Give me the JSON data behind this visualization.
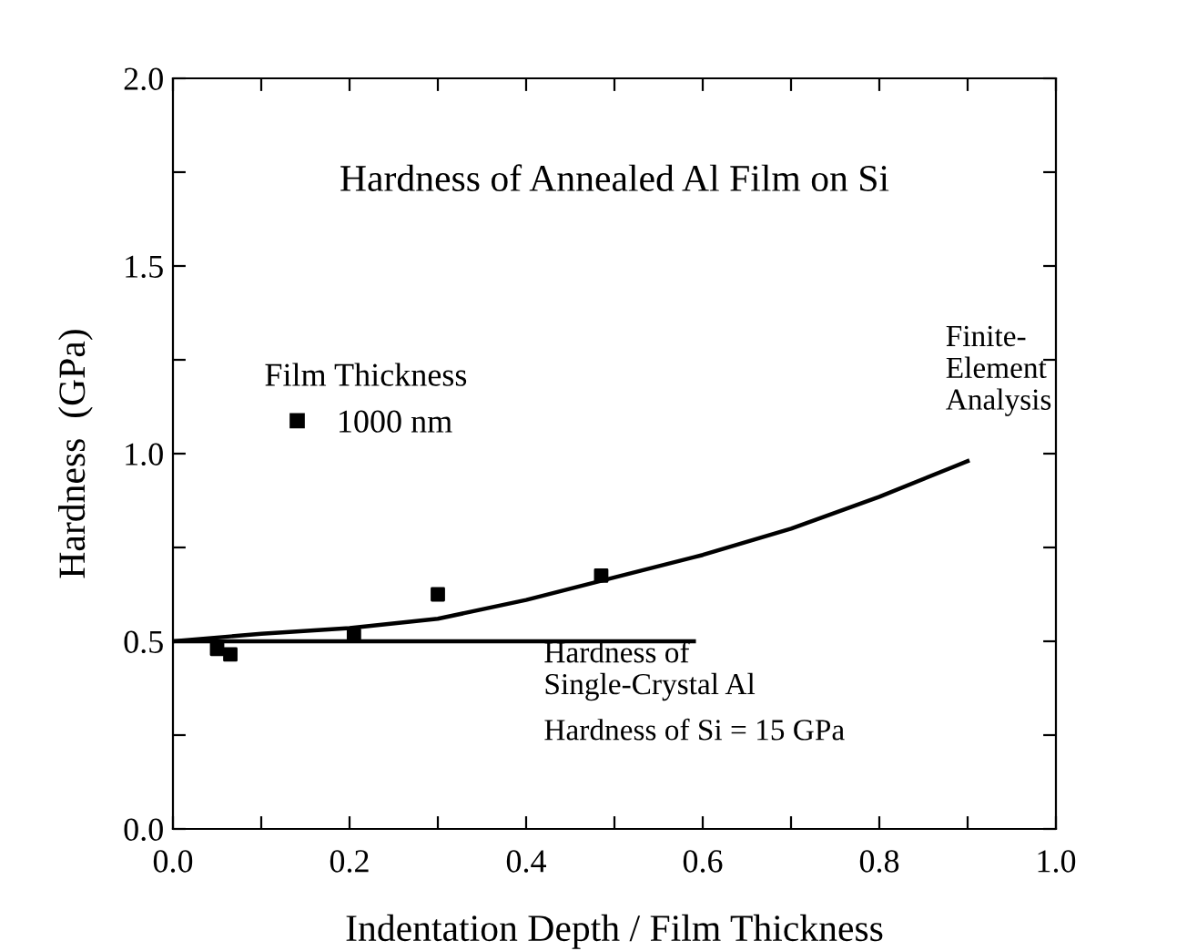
{
  "chart_data": {
    "type": "scatter",
    "title": "Hardness of Annealed Al Film on Si",
    "xlabel": "Indentation Depth / Film Thickness",
    "ylabel": "Hardness  (GPa)",
    "legend_title": "Film Thickness",
    "legend": "left",
    "xlim": [
      0.0,
      1.0
    ],
    "ylim": [
      0.0,
      2.0
    ],
    "xticks": [
      {
        "value": 0.0,
        "label": "0.0"
      },
      {
        "value": 0.1,
        "label": null
      },
      0.2,
      {
        "value": 0.3,
        "label": null
      },
      0.4,
      {
        "value": 0.5,
        "label": null
      },
      0.6,
      {
        "value": 0.7,
        "label": null
      },
      0.8,
      {
        "value": 0.9,
        "label": null
      },
      {
        "value": 1.0,
        "label": "1.0"
      }
    ],
    "yticks": [
      {
        "value": 0.0,
        "label": "0.0"
      },
      {
        "value": 0.25,
        "label": null
      },
      0.5,
      {
        "value": 0.75,
        "label": null
      },
      {
        "value": 1.0,
        "label": "1.0"
      },
      {
        "value": 1.25,
        "label": null
      },
      1.5,
      {
        "value": 1.75,
        "label": null
      },
      {
        "value": 2.0,
        "label": "2.0"
      }
    ],
    "series": [
      {
        "name": "1000 nm",
        "color": "#000000",
        "marker": "square",
        "x": [
          0.05,
          0.065,
          0.205,
          0.3,
          0.485
        ],
        "values": [
          0.48,
          0.465,
          0.515,
          0.625,
          0.675
        ]
      },
      {
        "type": "line",
        "color": "#000000",
        "marker": "none",
        "line_style": "solid",
        "x": [
          0.0,
          0.1,
          0.2,
          0.3,
          0.4,
          0.5,
          0.6,
          0.7,
          0.8,
          0.9
        ],
        "values": [
          0.5,
          0.52,
          0.535,
          0.56,
          0.61,
          0.67,
          0.73,
          0.8,
          0.885,
          0.98
        ]
      },
      {
        "type": "line",
        "color": "#000000",
        "marker": "none",
        "line_style": "solid",
        "x": [
          0.0,
          0.59
        ],
        "values": [
          0.5,
          0.5
        ]
      }
    ],
    "annotations": [
      "Finite-\nElement\nAnalysis",
      {
        "text": "Hardness of\nSingle-Crystal Al",
        "x": 0.42,
        "y": 0.5
      },
      "Hardness of Si = 15 GPa"
    ],
    "grid": false
  }
}
